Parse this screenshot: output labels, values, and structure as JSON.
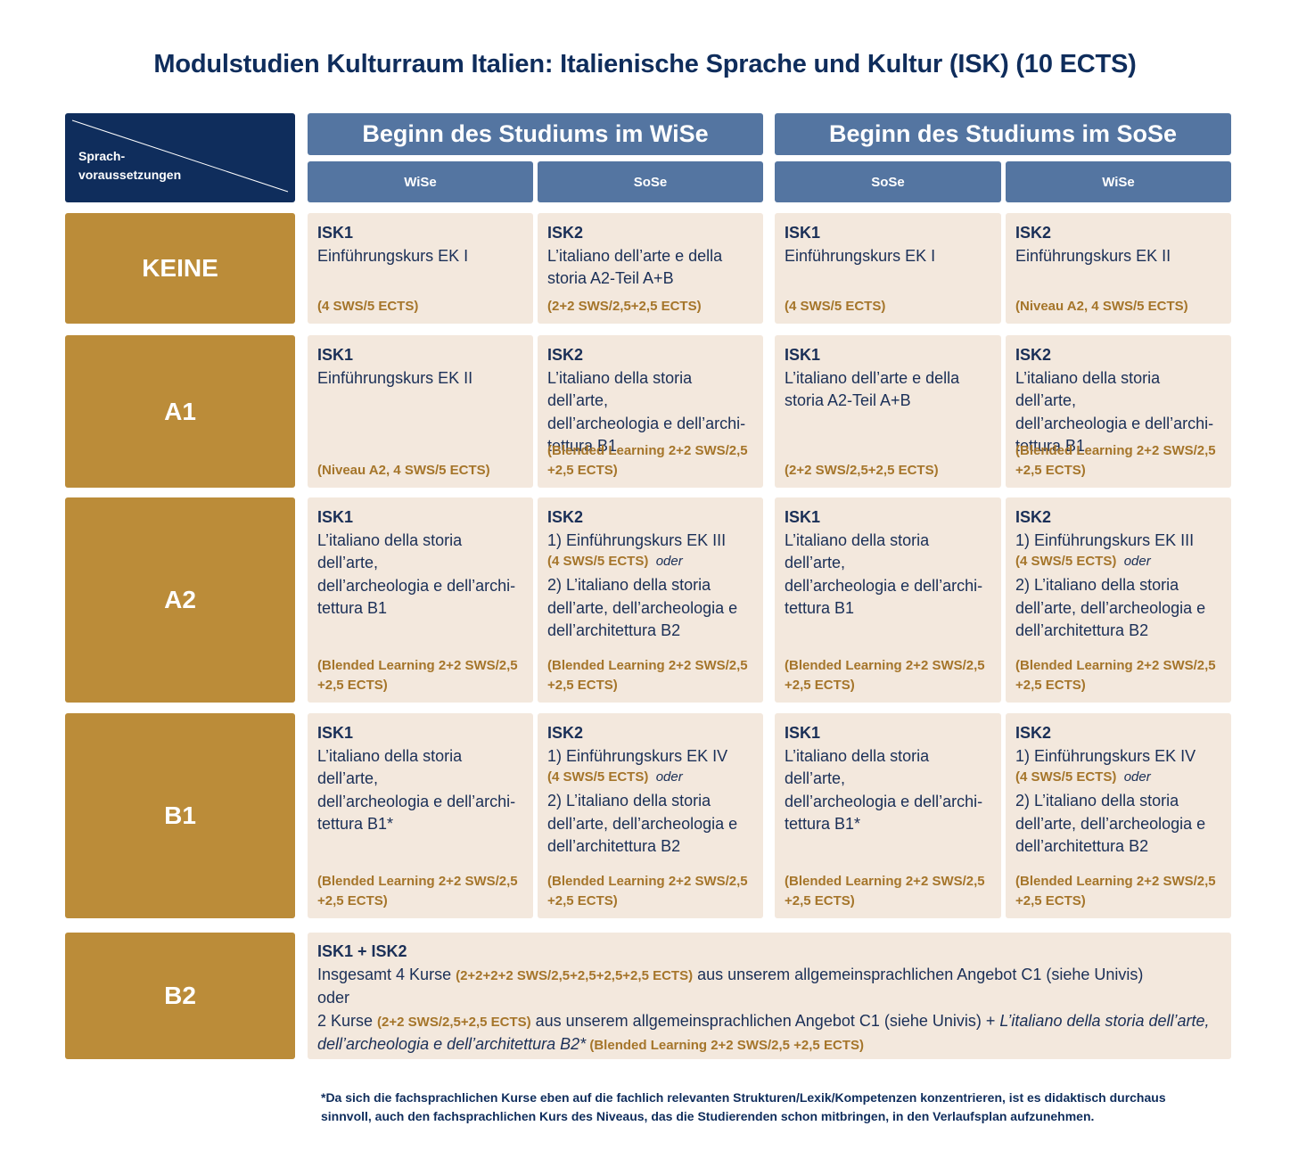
{
  "title": "Modulstudien Kulturraum Italien: Italienische Sprache und Kultur (ISK) (10 ECTS)",
  "corner": {
    "line1": "Sprach-",
    "line2": "voraussetzungen"
  },
  "headers": {
    "wise_start": "Beginn des Studiums im WiSe",
    "sose_start": "Beginn des Studiums im SoSe",
    "sub": [
      "WiSe",
      "SoSe",
      "SoSe",
      "WiSe"
    ]
  },
  "levels": [
    "KEINE",
    "A1",
    "A2",
    "B1",
    "B2"
  ],
  "rows": [
    [
      {
        "code": "ISK1",
        "lines": [
          "Einführungskurs EK I"
        ],
        "foot": "(4 SWS/5 ECTS)"
      },
      {
        "code": "ISK2",
        "lines": [
          "L’italiano dell’arte e della",
          "storia A2-Teil A+B"
        ],
        "foot": "(2+2 SWS/2,5+2,5 ECTS)"
      },
      {
        "code": "ISK1",
        "lines": [
          "Einführungskurs EK I"
        ],
        "foot": "(4 SWS/5 ECTS)"
      },
      {
        "code": "ISK2",
        "lines": [
          "Einführungskurs EK II"
        ],
        "foot": "(Niveau A2, 4 SWS/5 ECTS)"
      }
    ],
    [
      {
        "code": "ISK1",
        "lines": [
          "Einführungskurs EK II"
        ],
        "foot": "(Niveau A2, 4 SWS/5 ECTS)"
      },
      {
        "code": "ISK2",
        "lines": [
          "L’italiano della storia dell’arte,",
          "dell’archeologia e dell’archi-",
          "tettura B1"
        ],
        "foot1": "(Blended Learning 2+2 SWS/2,5",
        "foot2": "+2,5 ECTS)"
      },
      {
        "code": "ISK1",
        "lines": [
          "L’italiano dell’arte e della",
          "storia A2-Teil A+B"
        ],
        "foot": "(2+2 SWS/2,5+2,5 ECTS)"
      },
      {
        "code": "ISK2",
        "lines": [
          "L’italiano della storia dell’arte,",
          "dell’archeologia e dell’archi-",
          "tettura B1"
        ],
        "foot1": "(Blended Learning 2+2 SWS/2,5",
        "foot2": "+2,5 ECTS)"
      }
    ],
    [
      {
        "code": "ISK1",
        "lines": [
          "L’italiano della storia dell’arte,",
          "dell’archeologia e dell’archi-",
          "tettura B1"
        ],
        "foot1": "(Blended Learning 2+2 SWS/2,5",
        "foot2": "+2,5 ECTS)"
      },
      {
        "code": "ISK2",
        "opt1": "1)  Einführungskurs EK III",
        "opt1_credits": "(4 SWS/5 ECTS)",
        "oder": "oder",
        "opt2": [
          "2) L’italiano della storia",
          "dell’arte, dell’archeologia e",
          "dell’architettura B2"
        ],
        "foot1": "(Blended Learning 2+2 SWS/2,5",
        "foot2": "+2,5 ECTS)"
      },
      {
        "code": "ISK1",
        "lines": [
          "L’italiano della storia dell’arte,",
          "dell’archeologia e dell’archi-",
          "tettura B1"
        ],
        "foot1": "(Blended Learning 2+2 SWS/2,5",
        "foot2": "+2,5 ECTS)"
      },
      {
        "code": "ISK2",
        "opt1": "1)  Einführungskurs EK III",
        "opt1_credits": "(4 SWS/5 ECTS)",
        "oder": "oder",
        "opt2": [
          "2) L’italiano della storia",
          "dell’arte, dell’archeologia e",
          "dell’architettura B2"
        ],
        "foot1": "(Blended Learning 2+2 SWS/2,5",
        "foot2": "+2,5 ECTS)"
      }
    ],
    [
      {
        "code": "ISK1",
        "lines": [
          "L’italiano della storia dell’arte,",
          "dell’archeologia e dell’archi-",
          "tettura B1*"
        ],
        "foot1": "(Blended Learning 2+2 SWS/2,5",
        "foot2": "+2,5 ECTS)"
      },
      {
        "code": "ISK2",
        "opt1": "1)  Einführungskurs  EK IV",
        "opt1_credits": "(4 SWS/5 ECTS)",
        "oder": "oder",
        "opt2": [
          "2) L’italiano della storia",
          "dell’arte, dell’archeologia e",
          "dell’architettura B2"
        ],
        "foot1": "(Blended Learning 2+2 SWS/2,5",
        "foot2": "+2,5 ECTS)"
      },
      {
        "code": "ISK1",
        "lines": [
          "L’italiano della storia dell’arte,",
          "dell’archeologia e dell’archi-",
          "tettura B1*"
        ],
        "foot1": "(Blended Learning 2+2 SWS/2,5",
        "foot2": "+2,5 ECTS)"
      },
      {
        "code": "ISK2",
        "opt1": "1)  Einführungskurs EK IV",
        "opt1_credits": "(4 SWS/5 ECTS)",
        "oder": "oder",
        "opt2": [
          "2) L’italiano della storia",
          "dell’arte, dell’archeologia e",
          "dell’architettura B2"
        ],
        "foot1": "(Blended Learning 2+2 SWS/2,5",
        "foot2": "+2,5 ECTS)"
      }
    ]
  ],
  "b2": {
    "code": "ISK1 + ISK2",
    "l2_a": "Insgesamt 4 Kurse ",
    "l2_credits": "(2+2+2+2 SWS/2,5+2,5+2,5+2,5 ECTS)",
    "l2_b": " aus unserem allgemeinsprachlichen Angebot C1 (siehe Univis)",
    "l3": "oder",
    "l4_a": "2 Kurse ",
    "l4_credits": "(2+2 SWS/2,5+2,5 ECTS)",
    "l4_b": " aus unserem allgemeinsprachlichen Angebot C1 (siehe Univis) + ",
    "l4_it": "L’italiano della storia dell’arte,",
    "l5_it": "dell’archeologia e dell’architettura B2*",
    "l5_credits": " (Blended Learning 2+2 SWS/2,5 +2,5 ECTS)"
  },
  "footnote": {
    "line1": "*Da sich die fachsprachlichen Kurse eben auf die fachlich relevanten Strukturen/Lexik/Kompetenzen konzentrieren, ist es didaktisch durchaus",
    "line2": "sinnvoll, auch den fachsprachlichen Kurs des Niveaus, das die Studierenden schon mitbringen, in den Verlaufsplan aufzunehmen."
  },
  "colors": {
    "navy": "#0f2d5c",
    "header_blue": "#5475a1",
    "gold": "#bb8c39",
    "cell_bg": "#f3e8dd",
    "credit_text": "#a5752a"
  }
}
